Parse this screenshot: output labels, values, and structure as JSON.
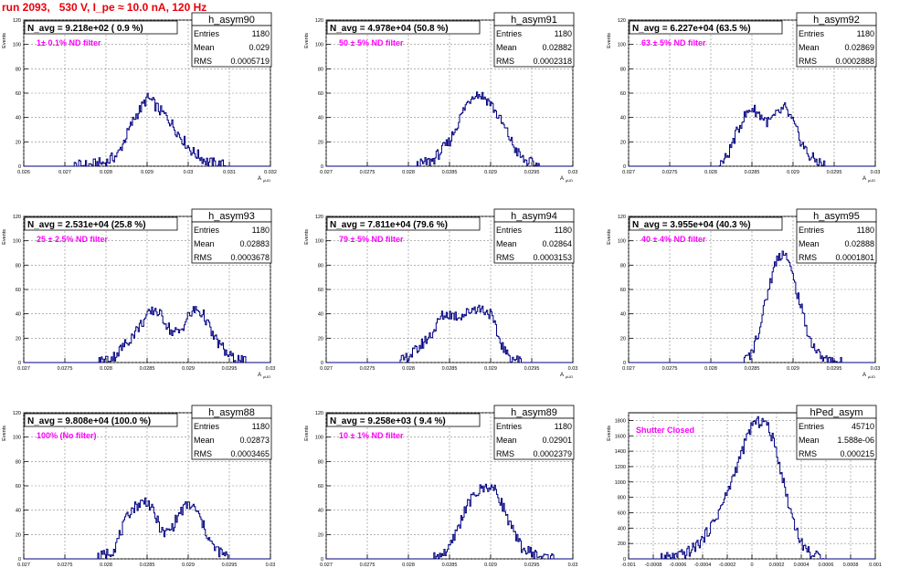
{
  "header": {
    "run_title": "run 2093,   530 V, I_pe ≈ 10.0 nA, 120 Hz"
  },
  "colors": {
    "title": "#e8000b",
    "note": "#ff00ff",
    "histogram": "#000080",
    "grid": "#000000"
  },
  "chart_data": [
    {
      "type": "histogram",
      "name": "h_asym90",
      "navg": "N_avg = 9.218e+02 ( 0.9 %)",
      "note": "1± 0.1% ND filter",
      "stats": [
        [
          "Entries",
          "1180"
        ],
        [
          "Mean",
          "0.029"
        ],
        [
          "RMS",
          "0.0005719"
        ]
      ],
      "ylabel": "Events",
      "xlabel": "A",
      "xlabel_sub": "μUD",
      "xlim": [
        0.026,
        0.032
      ],
      "ylim": [
        0,
        120
      ],
      "xticks": [
        0.026,
        0.027,
        0.028,
        0.029,
        0.03,
        0.031,
        0.032
      ],
      "xtick_labels": [
        "0.026",
        "0.027",
        "0.028",
        "0.029",
        "0.03",
        "0.031",
        "0.032"
      ],
      "yticks": [
        0,
        20,
        40,
        60,
        80,
        100,
        120
      ],
      "ytick_labels": [
        "0",
        "20",
        "40",
        "60",
        "80",
        "100",
        "120"
      ],
      "x": [
        0.0272,
        0.0276,
        0.028,
        0.0283,
        0.0285,
        0.0287,
        0.0289,
        0.029,
        0.0291,
        0.0293,
        0.0295,
        0.0298,
        0.0301,
        0.0305,
        0.031
      ],
      "y": [
        0,
        1,
        3,
        10,
        25,
        40,
        50,
        56,
        54,
        46,
        40,
        25,
        12,
        3,
        0
      ]
    },
    {
      "type": "histogram",
      "name": "h_asym91",
      "navg": "N_avg = 4.978e+04 (50.8 %)",
      "note": "50 ± 5% ND filter",
      "stats": [
        [
          "Entries",
          "1180"
        ],
        [
          "Mean",
          "0.02882"
        ],
        [
          "RMS",
          "0.0002318"
        ]
      ],
      "ylabel": "Events",
      "xlabel": "A",
      "xlabel_sub": "μUD",
      "xlim": [
        0.027,
        0.03
      ],
      "ylim": [
        0,
        120
      ],
      "xticks": [
        0.027,
        0.0275,
        0.028,
        0.0285,
        0.029,
        0.0295,
        0.03
      ],
      "xtick_labels": [
        "0.027",
        "0.0275",
        "0.028",
        "0.0285",
        "0.029",
        "0.0295",
        "0.03"
      ],
      "yticks": [
        0,
        20,
        40,
        60,
        80,
        100,
        120
      ],
      "ytick_labels": [
        "0",
        "20",
        "40",
        "60",
        "80",
        "100",
        "120"
      ],
      "x": [
        0.0281,
        0.0283,
        0.0285,
        0.0286,
        0.0287,
        0.0288,
        0.0289,
        0.029,
        0.0291,
        0.0292,
        0.0293,
        0.0294,
        0.0296
      ],
      "y": [
        0,
        5,
        20,
        35,
        50,
        60,
        58,
        52,
        40,
        28,
        14,
        5,
        0
      ]
    },
    {
      "type": "histogram",
      "name": "h_asym92",
      "navg": "N_avg = 6.227e+04 (63.5 %)",
      "note": "63 ± 5% ND filter",
      "stats": [
        [
          "Entries",
          "1180"
        ],
        [
          "Mean",
          "0.02869"
        ],
        [
          "RMS",
          "0.0002888"
        ]
      ],
      "ylabel": "Events",
      "xlabel": "A",
      "xlabel_sub": "μUD",
      "xlim": [
        0.027,
        0.03
      ],
      "ylim": [
        0,
        120
      ],
      "xticks": [
        0.027,
        0.0275,
        0.028,
        0.0285,
        0.029,
        0.0295,
        0.03
      ],
      "xtick_labels": [
        "0.027",
        "0.0275",
        "0.028",
        "0.0285",
        "0.029",
        "0.0295",
        "0.03"
      ],
      "yticks": [
        0,
        20,
        40,
        60,
        80,
        100,
        120
      ],
      "ytick_labels": [
        "0",
        "20",
        "40",
        "60",
        "80",
        "100",
        "120"
      ],
      "x": [
        0.0281,
        0.0282,
        0.0283,
        0.0284,
        0.0285,
        0.0286,
        0.0287,
        0.0288,
        0.0289,
        0.029,
        0.0291,
        0.0292,
        0.0294
      ],
      "y": [
        0,
        8,
        25,
        40,
        48,
        42,
        36,
        42,
        48,
        36,
        20,
        8,
        0
      ]
    },
    {
      "type": "histogram",
      "name": "h_asym93",
      "navg": "N_avg = 2.531e+04 (25.8 %)",
      "note": "25 ± 2.5% ND filter",
      "stats": [
        [
          "Entries",
          "1180"
        ],
        [
          "Mean",
          "0.02883"
        ],
        [
          "RMS",
          "0.0003678"
        ]
      ],
      "ylabel": "Events",
      "xlabel": "A",
      "xlabel_sub": "μUD",
      "xlim": [
        0.027,
        0.03
      ],
      "ylim": [
        0,
        120
      ],
      "xticks": [
        0.027,
        0.0275,
        0.028,
        0.0285,
        0.029,
        0.0295,
        0.03
      ],
      "xtick_labels": [
        "0.027",
        "0.0275",
        "0.028",
        "0.0285",
        "0.029",
        "0.0295",
        "0.03"
      ],
      "yticks": [
        0,
        20,
        40,
        60,
        80,
        100,
        120
      ],
      "ytick_labels": [
        "0",
        "20",
        "40",
        "60",
        "80",
        "100",
        "120"
      ],
      "x": [
        0.0279,
        0.0281,
        0.0283,
        0.0285,
        0.0286,
        0.0287,
        0.0288,
        0.0289,
        0.029,
        0.0291,
        0.0292,
        0.0293,
        0.0295,
        0.0297
      ],
      "y": [
        0,
        5,
        20,
        38,
        44,
        36,
        25,
        25,
        38,
        44,
        38,
        22,
        5,
        0
      ]
    },
    {
      "type": "histogram",
      "name": "h_asym94",
      "navg": "N_avg = 7.811e+04 (79.6 %)",
      "note": "79 ± 5% ND filter",
      "stats": [
        [
          "Entries",
          "1180"
        ],
        [
          "Mean",
          "0.02864"
        ],
        [
          "RMS",
          "0.0003153"
        ]
      ],
      "ylabel": "Events",
      "xlabel": "A",
      "xlabel_sub": "μUD",
      "xlim": [
        0.027,
        0.03
      ],
      "ylim": [
        0,
        120
      ],
      "xticks": [
        0.027,
        0.0275,
        0.028,
        0.0285,
        0.029,
        0.0295,
        0.03
      ],
      "xtick_labels": [
        "0.027",
        "0.0275",
        "0.028",
        "0.0285",
        "0.029",
        "0.0295",
        "0.03"
      ],
      "yticks": [
        0,
        20,
        40,
        60,
        80,
        100,
        120
      ],
      "ytick_labels": [
        "0",
        "20",
        "40",
        "60",
        "80",
        "100",
        "120"
      ],
      "x": [
        0.0279,
        0.0281,
        0.0283,
        0.0284,
        0.0285,
        0.0286,
        0.0287,
        0.0288,
        0.0289,
        0.029,
        0.0291,
        0.0292,
        0.0294
      ],
      "y": [
        0,
        10,
        25,
        38,
        40,
        38,
        40,
        45,
        44,
        40,
        20,
        6,
        0
      ]
    },
    {
      "type": "histogram",
      "name": "h_asym95",
      "navg": "N_avg = 3.955e+04 (40.3 %)",
      "note": "40 ± 4% ND filter",
      "stats": [
        [
          "Entries",
          "1180"
        ],
        [
          "Mean",
          "0.02888"
        ],
        [
          "RMS",
          "0.0001801"
        ]
      ],
      "ylabel": "Events",
      "xlabel": "A",
      "xlabel_sub": "μUD",
      "xlim": [
        0.027,
        0.03
      ],
      "ylim": [
        0,
        120
      ],
      "xticks": [
        0.027,
        0.0275,
        0.028,
        0.0285,
        0.029,
        0.0295,
        0.03
      ],
      "xtick_labels": [
        "0.027",
        "0.0275",
        "0.028",
        "0.0285",
        "0.029",
        "0.0295",
        "0.03"
      ],
      "yticks": [
        0,
        20,
        40,
        60,
        80,
        100,
        120
      ],
      "ytick_labels": [
        "0",
        "20",
        "40",
        "60",
        "80",
        "100",
        "120"
      ],
      "x": [
        0.0284,
        0.0285,
        0.0286,
        0.0287,
        0.0288,
        0.0289,
        0.029,
        0.0291,
        0.0292,
        0.0293,
        0.0294,
        0.0296
      ],
      "y": [
        0,
        8,
        30,
        60,
        85,
        92,
        70,
        45,
        20,
        8,
        2,
        0
      ]
    },
    {
      "type": "histogram",
      "name": "h_asym88",
      "navg": "N_avg = 9.808e+04 (100.0 %)",
      "note": "100% (No filter)",
      "stats": [
        [
          "Entries",
          "1180"
        ],
        [
          "Mean",
          "0.02873"
        ],
        [
          "RMS",
          "0.0003465"
        ]
      ],
      "ylabel": "Events",
      "xlabel": "A",
      "xlabel_sub": "μUD",
      "xlim": [
        0.027,
        0.03
      ],
      "ylim": [
        0,
        120
      ],
      "xticks": [
        0.027,
        0.0275,
        0.028,
        0.0285,
        0.029,
        0.0295,
        0.03
      ],
      "xtick_labels": [
        "0.027",
        "0.0275",
        "0.028",
        "0.0285",
        "0.029",
        "0.0295",
        "0.03"
      ],
      "yticks": [
        0,
        20,
        40,
        60,
        80,
        100,
        120
      ],
      "ytick_labels": [
        "0",
        "20",
        "40",
        "60",
        "80",
        "100",
        "120"
      ],
      "x": [
        0.0279,
        0.0281,
        0.0282,
        0.0283,
        0.0284,
        0.0285,
        0.0286,
        0.0287,
        0.0288,
        0.0289,
        0.029,
        0.0291,
        0.0292,
        0.0293,
        0.0295
      ],
      "y": [
        0,
        8,
        25,
        40,
        45,
        48,
        35,
        20,
        25,
        38,
        45,
        40,
        25,
        10,
        0
      ]
    },
    {
      "type": "histogram",
      "name": "h_asym89",
      "navg": "N_avg = 9.258e+03 ( 9.4 %)",
      "note": "10 ± 1% ND filter",
      "stats": [
        [
          "Entries",
          "1180"
        ],
        [
          "Mean",
          "0.02901"
        ],
        [
          "RMS",
          "0.0002379"
        ]
      ],
      "ylabel": "Events",
      "xlabel": "A",
      "xlabel_sub": "μUD",
      "xlim": [
        0.027,
        0.03
      ],
      "ylim": [
        0,
        120
      ],
      "xticks": [
        0.027,
        0.0275,
        0.028,
        0.0285,
        0.029,
        0.0295,
        0.03
      ],
      "xtick_labels": [
        "0.027",
        "0.0275",
        "0.028",
        "0.0285",
        "0.029",
        "0.0295",
        "0.03"
      ],
      "yticks": [
        0,
        20,
        40,
        60,
        80,
        100,
        120
      ],
      "ytick_labels": [
        "0",
        "20",
        "40",
        "60",
        "80",
        "100",
        "120"
      ],
      "x": [
        0.0283,
        0.0285,
        0.0286,
        0.0287,
        0.0288,
        0.0289,
        0.029,
        0.0291,
        0.0292,
        0.0293,
        0.0294,
        0.0296,
        0.0298
      ],
      "y": [
        0,
        8,
        25,
        42,
        52,
        58,
        60,
        52,
        35,
        18,
        8,
        2,
        0
      ]
    },
    {
      "type": "histogram",
      "name": "hPed_asym",
      "navg": "",
      "note": "Shutter Closed",
      "stats": [
        [
          "Entries",
          "45710"
        ],
        [
          "Mean",
          "1.588e-06"
        ],
        [
          "RMS",
          "0.000215"
        ]
      ],
      "ylabel": "Events",
      "xlabel": "",
      "xlabel_sub": "",
      "xlim": [
        -0.001,
        0.001
      ],
      "ylim": [
        0,
        1900
      ],
      "xticks": [
        -0.001,
        -0.0008,
        -0.0006,
        -0.0004,
        -0.0002,
        0,
        0.0002,
        0.0004,
        0.0006,
        0.0008,
        0.001
      ],
      "xtick_labels": [
        "-0.001",
        "-0.0008",
        "-0.0006",
        "-0.0004",
        "-0.0002",
        "0",
        "0.0002",
        "0.0004",
        "0.0006",
        "0.0008",
        "0.001"
      ],
      "yticks": [
        0,
        200,
        400,
        600,
        800,
        1000,
        1200,
        1400,
        1600,
        1800
      ],
      "ytick_labels": [
        "0",
        "200",
        "400",
        "600",
        "800",
        "1000",
        "1200",
        "1400",
        "1600",
        "1800"
      ],
      "x": [
        -0.00075,
        -0.0006,
        -0.0005,
        -0.0004,
        -0.0003,
        -0.0002,
        -0.0001,
        0,
        0.0001,
        0.00015,
        0.0002,
        0.0003,
        0.0004,
        0.0005,
        0.0006
      ],
      "y": [
        0,
        30,
        100,
        250,
        500,
        850,
        1300,
        1750,
        1800,
        1650,
        1400,
        700,
        200,
        40,
        0
      ]
    }
  ]
}
